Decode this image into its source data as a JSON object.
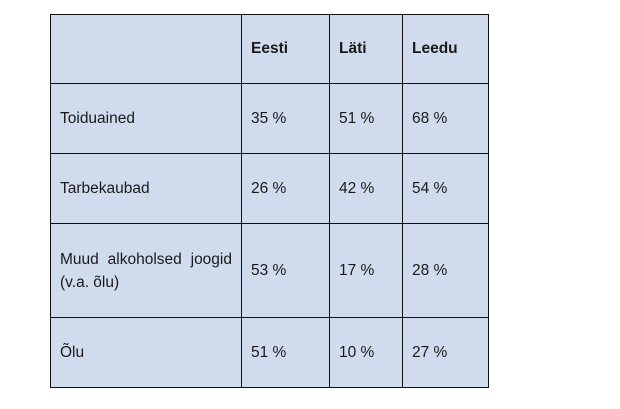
{
  "table": {
    "header": {
      "corner": "",
      "columns": [
        "Eesti",
        "Läti",
        "Leedu"
      ]
    },
    "rows": [
      {
        "label": "Toiduained",
        "values": [
          "35 %",
          "51 %",
          "68 %"
        ]
      },
      {
        "label": "Tarbekaubad",
        "values": [
          "26 %",
          "42 %",
          "54 %"
        ]
      },
      {
        "label": "Muud alkoholsed joogid (v.a. õlu)",
        "values": [
          "53 %",
          "17 %",
          "28 %"
        ]
      },
      {
        "label": "Õlu",
        "values": [
          "51 %",
          "10 %",
          "27 %"
        ]
      }
    ]
  }
}
